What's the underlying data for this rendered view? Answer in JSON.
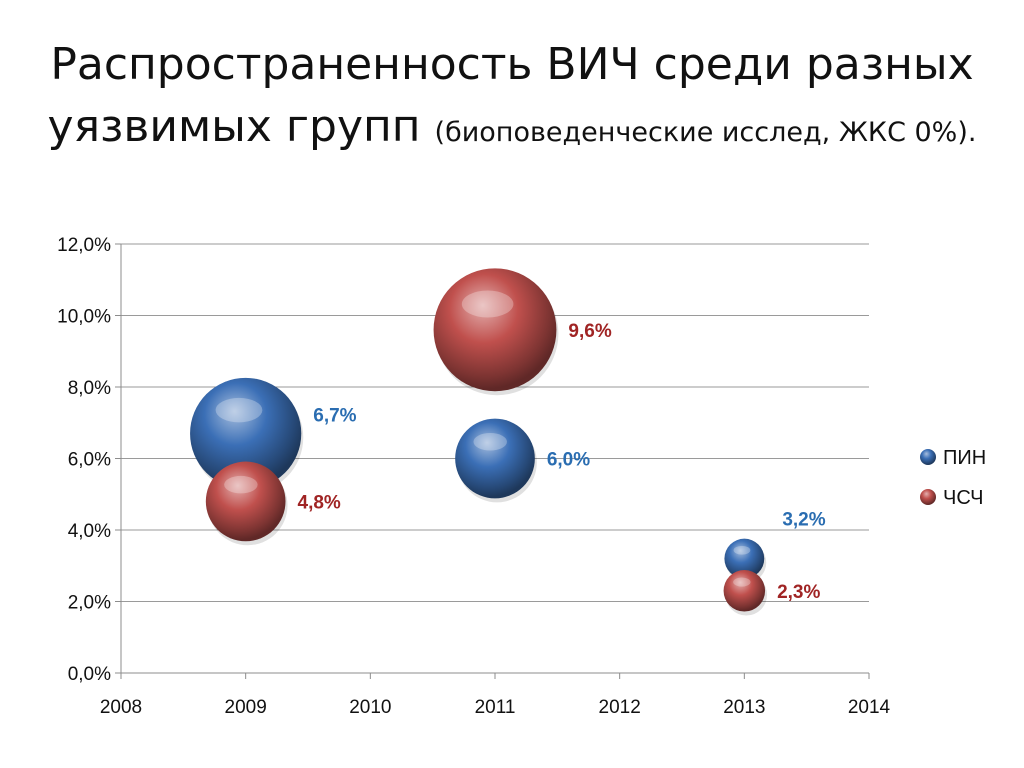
{
  "slide": {
    "title_line1": "Распространенность ВИЧ среди разных",
    "title_line2": "уязвимых групп",
    "title_sub": "(биоповеденческие исслед, ЖКС 0%)."
  },
  "chart_data": {
    "type": "bubble",
    "title": "",
    "xlabel": "",
    "ylabel": "",
    "xlim": [
      2008,
      2014
    ],
    "ylim": [
      0,
      12
    ],
    "x_ticks": [
      2008,
      2009,
      2010,
      2011,
      2012,
      2013,
      2014
    ],
    "x_tick_labels": [
      "2008",
      "2009",
      "2010",
      "2011",
      "2012",
      "2013",
      "2014"
    ],
    "y_ticks": [
      0,
      2,
      4,
      6,
      8,
      10,
      12
    ],
    "y_tick_labels": [
      "0,0%",
      "2,0%",
      "4,0%",
      "6,0%",
      "8,0%",
      "10,0%",
      "12,0%"
    ],
    "grid": "horizontal",
    "legend_position": "right",
    "series": [
      {
        "name": "ПИН",
        "color": "#3b6fb6",
        "label_color": "#2a6db1",
        "points": [
          {
            "x": 2009,
            "y": 6.7,
            "size": 6.7,
            "label": "6,7%"
          },
          {
            "x": 2011,
            "y": 6.0,
            "size": 4.8,
            "label": "6,0%"
          },
          {
            "x": 2013,
            "y": 3.2,
            "size": 2.4,
            "label": "3,2%"
          }
        ]
      },
      {
        "name": "ЧСЧ",
        "color": "#c0504d",
        "label_color": "#a02424",
        "points": [
          {
            "x": 2009,
            "y": 4.8,
            "size": 4.8,
            "label": "4,8%"
          },
          {
            "x": 2011,
            "y": 9.6,
            "size": 7.4,
            "label": "9,6%"
          },
          {
            "x": 2013,
            "y": 2.3,
            "size": 2.5,
            "label": "2,3%"
          }
        ]
      }
    ]
  }
}
